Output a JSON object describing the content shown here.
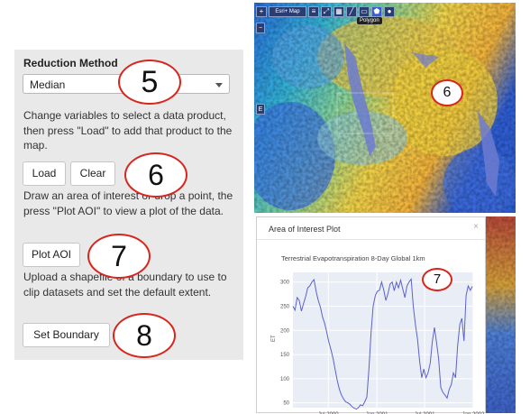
{
  "form": {
    "reduction_heading": "Reduction Method",
    "reduction_value": "Median",
    "help_variables": "Change variables to select a data product, then press \"Load\" to add that product to the map.",
    "load_label": "Load",
    "clear_label": "Clear",
    "help_aoi": "Draw an area of interest or drop a point, the press \"Plot AOI\" to view a plot of the data.",
    "plot_aoi_label": "Plot AOI",
    "help_shapefile": "Upload a shapefile of a boundary to use to clip datasets and set the default extent.",
    "set_boundary_label": "Set Boundary"
  },
  "callouts": [
    "5",
    "6",
    "7",
    "8"
  ],
  "map": {
    "basemap_label": "Esri+ Map",
    "tooltip": "Polygon",
    "side_button": "E",
    "marker": "6"
  },
  "plot_modal": {
    "title": "Area of Interest Plot",
    "close": "×",
    "marker": "7"
  },
  "chart_data": {
    "type": "line",
    "title": "Terrestrial Evapotranspiration 8-Day Global 1km",
    "xlabel": "",
    "ylabel": "ET",
    "ylim": [
      40,
      320
    ],
    "yticks": [
      50,
      100,
      150,
      200,
      250,
      300
    ],
    "xticks": [
      "Jul 2000",
      "Jan 2001",
      "Jul 2001",
      "Jan 2002"
    ],
    "xrange": [
      "2000-02-18",
      "2002-01-01"
    ],
    "grid": true,
    "line_color": "#5b62c9",
    "series": [
      {
        "x": [
          "2000-02-18",
          "2000-02-26",
          "2000-03-05",
          "2000-03-13",
          "2000-03-21",
          "2000-03-29",
          "2000-04-06",
          "2000-04-14",
          "2000-04-22",
          "2000-04-30",
          "2000-05-08",
          "2000-05-16",
          "2000-05-24",
          "2000-06-01",
          "2000-06-09",
          "2000-06-17",
          "2000-06-25",
          "2000-07-03",
          "2000-07-11",
          "2000-07-19",
          "2000-07-27",
          "2000-08-04",
          "2000-08-12",
          "2000-08-20",
          "2000-08-28",
          "2000-09-05",
          "2000-09-13",
          "2000-09-21",
          "2000-09-29",
          "2000-10-07",
          "2000-10-15",
          "2000-10-23",
          "2000-10-31",
          "2000-11-08",
          "2000-11-16",
          "2000-11-24",
          "2000-12-02",
          "2000-12-10",
          "2000-12-18",
          "2000-12-26",
          "2001-01-03",
          "2001-01-11",
          "2001-01-19",
          "2001-01-27",
          "2001-02-04",
          "2001-02-12",
          "2001-02-20",
          "2001-02-28",
          "2001-03-08",
          "2001-03-16",
          "2001-03-24",
          "2001-04-01",
          "2001-04-09",
          "2001-04-17",
          "2001-04-25",
          "2001-05-03",
          "2001-05-11",
          "2001-05-19",
          "2001-05-27",
          "2001-06-04",
          "2001-06-12",
          "2001-06-20",
          "2001-06-28",
          "2001-07-06",
          "2001-07-14",
          "2001-07-22",
          "2001-07-30",
          "2001-08-07",
          "2001-08-15",
          "2001-08-23",
          "2001-08-31",
          "2001-09-08",
          "2001-09-16",
          "2001-09-24",
          "2001-10-02",
          "2001-10-10",
          "2001-10-18",
          "2001-10-26",
          "2001-11-03",
          "2001-11-11",
          "2001-11-19",
          "2001-11-27",
          "2001-12-05",
          "2001-12-13",
          "2001-12-21",
          "2001-12-29"
        ],
        "y": [
          250,
          242,
          268,
          262,
          240,
          255,
          270,
          288,
          292,
          300,
          305,
          280,
          262,
          248,
          228,
          215,
          196,
          176,
          160,
          142,
          118,
          96,
          78,
          66,
          58,
          52,
          50,
          47,
          42,
          39,
          37,
          40,
          46,
          44,
          52,
          62,
          120,
          196,
          250,
          272,
          281,
          283,
          300,
          284,
          262,
          276,
          296,
          300,
          282,
          300,
          288,
          304,
          286,
          268,
          292,
          300,
          306,
          250,
          212,
          182,
          135,
          102,
          120,
          102,
          112,
          132,
          176,
          206,
          175,
          142,
          82,
          72,
          66,
          60,
          78,
          88,
          112,
          102,
          168,
          212,
          225,
          178,
          272,
          292,
          283,
          291
        ]
      }
    ]
  }
}
